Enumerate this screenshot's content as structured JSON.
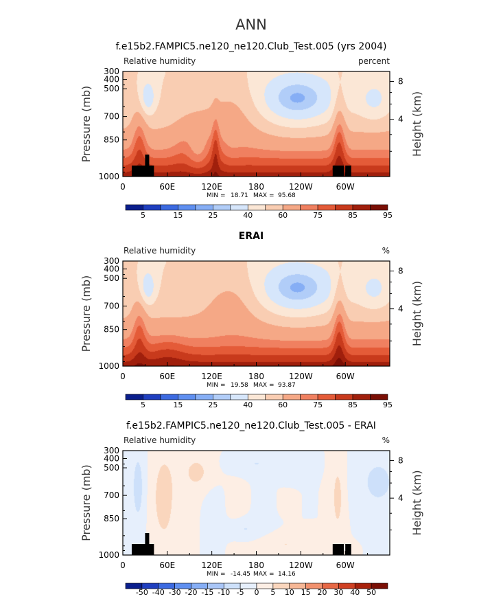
{
  "figure": {
    "title": "ANN"
  },
  "colors": {
    "rh_levels": [
      "#0a1e8c",
      "#1f3fbf",
      "#3c6ae0",
      "#5f8ff0",
      "#86aef5",
      "#b1cdf8",
      "#d6e6fb",
      "#fbe7d6",
      "#f9cdb2",
      "#f5a886",
      "#f08060",
      "#e45b38",
      "#c83a1c",
      "#a01f0c",
      "#7a0f05"
    ],
    "diff_levels": [
      "#0a1e8c",
      "#1f3fbf",
      "#3c6ae0",
      "#5f8ff0",
      "#86aef5",
      "#a9c6f7",
      "#cde0fa",
      "#e6effc",
      "#fdeee4",
      "#fad6bd",
      "#f6b796",
      "#f1916e",
      "#e66845",
      "#cf4123",
      "#a8220c",
      "#7a0f05"
    ],
    "topo": "#000000",
    "frame": "#000000"
  },
  "chart_data": [
    {
      "type": "heatmap",
      "title": "f.e15b2.FAMPIC5.ne120_ne120.Club_Test.005 (yrs 2004)",
      "left_string": "Relative humidity",
      "right_string": "percent",
      "ylabel": "Pressure (mb)",
      "right_axis_label": "Height (km)",
      "x_ticks": [
        "0",
        "60E",
        "120E",
        "180",
        "120W",
        "60W"
      ],
      "y_ticks": [
        "300",
        "400",
        "500",
        "700",
        "850",
        "1000"
      ],
      "right_ticks": [
        "8",
        "4"
      ],
      "xlim": [
        0,
        360
      ],
      "ylim": [
        1000,
        300
      ],
      "min_label": "MIN =",
      "min": "18.71",
      "max_label": "MAX =",
      "max": "95.68",
      "colorbar_labels": [
        "5",
        "15",
        "25",
        "40",
        "60",
        "75",
        "85",
        "95"
      ],
      "color_levels": [
        5,
        10,
        15,
        20,
        25,
        30,
        40,
        50,
        60,
        70,
        75,
        80,
        85,
        90,
        95
      ]
    },
    {
      "type": "heatmap",
      "title": "ERAI",
      "left_string": "Relative humidity",
      "right_string": "%",
      "ylabel": "Pressure (mb)",
      "right_axis_label": "Height (km)",
      "x_ticks": [
        "0",
        "60E",
        "120E",
        "180",
        "120W",
        "60W"
      ],
      "y_ticks": [
        "300",
        "400",
        "500",
        "700",
        "850",
        "1000"
      ],
      "right_ticks": [
        "8",
        "4"
      ],
      "xlim": [
        0,
        360
      ],
      "ylim": [
        1000,
        300
      ],
      "min_label": "MIN =",
      "min": "19.58",
      "max_label": "MAX =",
      "max": "93.87",
      "colorbar_labels": [
        "5",
        "15",
        "25",
        "40",
        "60",
        "75",
        "85",
        "95"
      ],
      "color_levels": [
        5,
        10,
        15,
        20,
        25,
        30,
        40,
        50,
        60,
        70,
        75,
        80,
        85,
        90,
        95
      ]
    },
    {
      "type": "heatmap",
      "title": "f.e15b2.FAMPIC5.ne120_ne120.Club_Test.005 - ERAI",
      "left_string": "Relative humidity",
      "right_string": "%",
      "ylabel": "Pressure (mb)",
      "right_axis_label": "Height (km)",
      "x_ticks": [
        "0",
        "60E",
        "120E",
        "180",
        "120W",
        "60W"
      ],
      "y_ticks": [
        "300",
        "400",
        "500",
        "700",
        "850",
        "1000"
      ],
      "right_ticks": [
        "8",
        "4"
      ],
      "xlim": [
        0,
        360
      ],
      "ylim": [
        1000,
        300
      ],
      "min_label": "MIN =",
      "min": "-14.45",
      "max_label": "MAX =",
      "max": "14.16",
      "colorbar_labels": [
        "-50",
        "-40",
        "-30",
        "-20",
        "-15",
        "-10",
        "-5",
        "0",
        "5",
        "10",
        "15",
        "20",
        "30",
        "40",
        "50"
      ],
      "color_levels": [
        -50,
        -40,
        -30,
        -20,
        -15,
        -10,
        -5,
        0,
        5,
        10,
        15,
        20,
        30,
        40,
        50
      ]
    }
  ]
}
